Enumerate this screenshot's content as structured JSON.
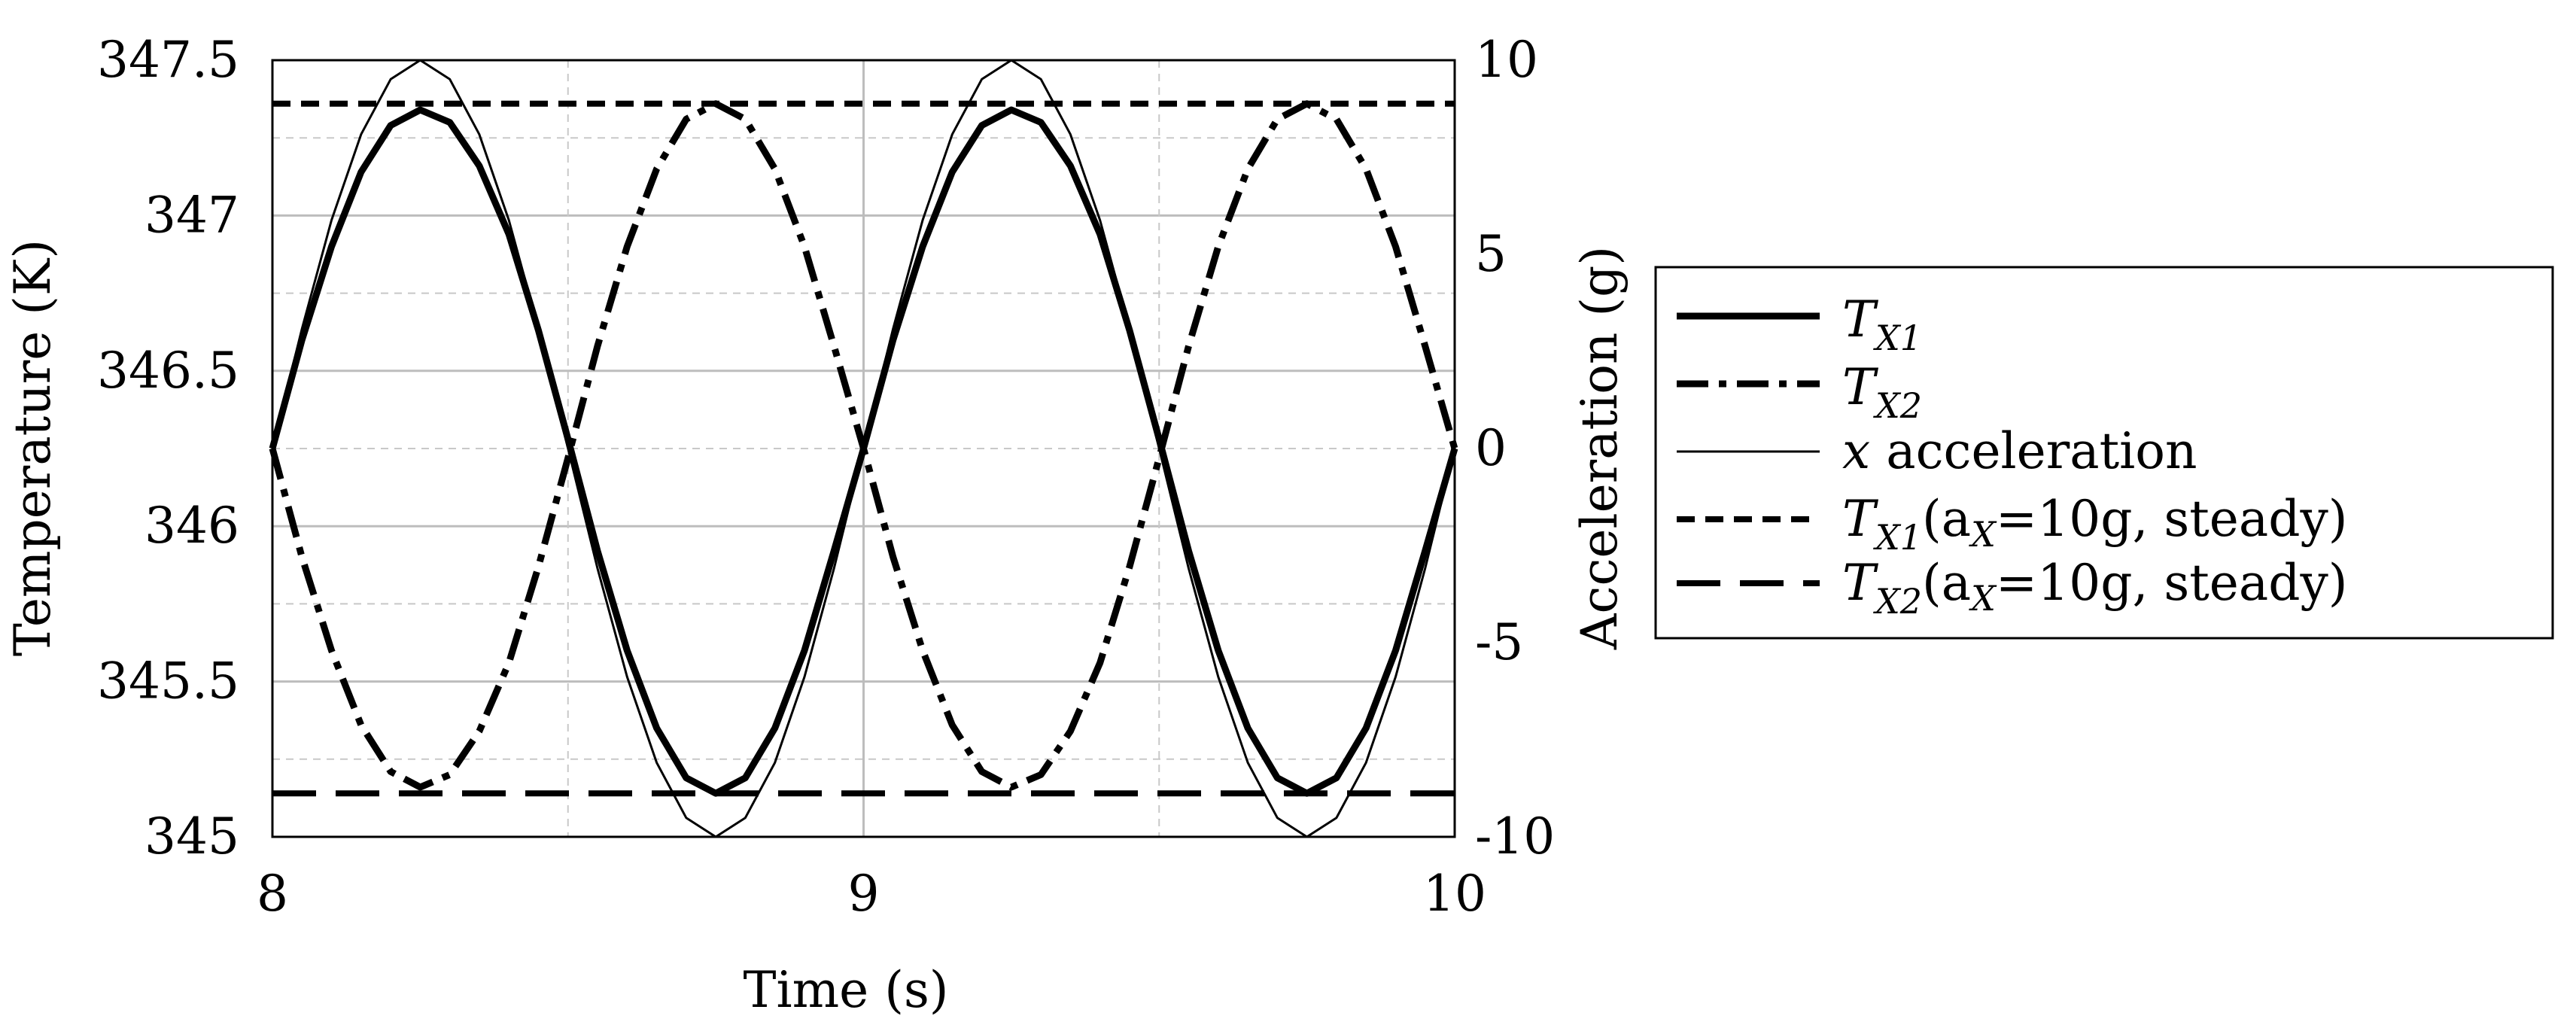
{
  "chart_data": {
    "type": "line",
    "xlabel": "Time (s)",
    "ylabel_left": "Temperature (K)",
    "ylabel_right": "Acceleration (g)",
    "xlim": [
      8,
      10
    ],
    "ylim_left": [
      345,
      347.5
    ],
    "ylim_right": [
      -10,
      10
    ],
    "x_ticks": [
      "8",
      "9",
      "10"
    ],
    "y_left_ticks": [
      "345",
      "345.5",
      "346",
      "346.5",
      "347",
      "347.5"
    ],
    "y_right_ticks": [
      "-10",
      "-5",
      "0",
      "5",
      "10"
    ],
    "grid": true,
    "legend_position": "right, outside plot",
    "legend_labels": {
      "tx1": {
        "main": "T",
        "sub": "X1",
        "tail": ""
      },
      "tx2": {
        "main": "T",
        "sub": "X2",
        "tail": ""
      },
      "acc": {
        "main": "x",
        "tail": " acceleration"
      },
      "tx1s": {
        "main": "T",
        "sub": "X1",
        "tail": "(a",
        "tail_sub": "X",
        "tail_end": "=10g, steady)"
      },
      "tx2s": {
        "main": "T",
        "sub": "X2",
        "tail": "(a",
        "tail_sub": "X",
        "tail_end": "=10g, steady)"
      }
    },
    "series": [
      {
        "name": "T_X1",
        "axis": "left",
        "style": "solid-thick",
        "x": [
          8,
          8.05,
          8.1,
          8.15,
          8.2,
          8.25,
          8.3,
          8.35,
          8.4,
          8.45,
          8.5,
          8.55,
          8.6,
          8.65,
          8.7,
          8.75,
          8.8,
          8.85,
          8.9,
          8.95,
          9,
          9.05,
          9.1,
          9.15,
          9.2,
          9.25,
          9.3,
          9.35,
          9.4,
          9.45,
          9.5,
          9.55,
          9.6,
          9.65,
          9.7,
          9.75,
          9.8,
          9.85,
          9.9,
          9.95,
          10
        ],
        "y": [
          346.25,
          346.6,
          346.9,
          347.14,
          347.29,
          347.34,
          347.3,
          347.16,
          346.94,
          346.63,
          346.28,
          345.92,
          345.6,
          345.35,
          345.19,
          345.14,
          345.19,
          345.35,
          345.6,
          345.92,
          346.25,
          346.6,
          346.9,
          347.14,
          347.29,
          347.34,
          347.3,
          347.16,
          346.94,
          346.63,
          346.28,
          345.92,
          345.6,
          345.35,
          345.19,
          345.14,
          345.19,
          345.35,
          345.6,
          345.92,
          346.25
        ]
      },
      {
        "name": "T_X2",
        "axis": "left",
        "style": "dash-dot-thick",
        "x": [
          8,
          8.05,
          8.1,
          8.15,
          8.2,
          8.25,
          8.3,
          8.35,
          8.4,
          8.45,
          8.5,
          8.55,
          8.6,
          8.65,
          8.7,
          8.75,
          8.8,
          8.85,
          8.9,
          8.95,
          9,
          9.05,
          9.1,
          9.15,
          9.2,
          9.25,
          9.3,
          9.35,
          9.4,
          9.45,
          9.5,
          9.55,
          9.6,
          9.65,
          9.7,
          9.75,
          9.8,
          9.85,
          9.9,
          9.95,
          10
        ],
        "y": [
          346.25,
          345.9,
          345.6,
          345.36,
          345.21,
          345.16,
          345.2,
          345.34,
          345.56,
          345.87,
          346.22,
          346.58,
          346.9,
          347.15,
          347.31,
          347.36,
          347.31,
          347.15,
          346.9,
          346.58,
          346.25,
          345.9,
          345.6,
          345.36,
          345.21,
          345.16,
          345.2,
          345.34,
          345.56,
          345.87,
          346.22,
          346.58,
          346.9,
          347.15,
          347.31,
          347.36,
          347.31,
          347.15,
          346.9,
          346.58,
          346.25
        ]
      },
      {
        "name": "x acceleration",
        "axis": "right",
        "style": "solid-thin",
        "x": [
          8,
          8.05,
          8.1,
          8.15,
          8.2,
          8.25,
          8.3,
          8.35,
          8.4,
          8.45,
          8.5,
          8.55,
          8.6,
          8.65,
          8.7,
          8.75,
          8.8,
          8.85,
          8.9,
          8.95,
          9,
          9.05,
          9.1,
          9.15,
          9.2,
          9.25,
          9.3,
          9.35,
          9.4,
          9.45,
          9.5,
          9.55,
          9.6,
          9.65,
          9.7,
          9.75,
          9.8,
          9.85,
          9.9,
          9.95,
          10
        ],
        "y": [
          0,
          3.09,
          5.88,
          8.09,
          9.51,
          10,
          9.51,
          8.09,
          5.88,
          3.09,
          0,
          -3.09,
          -5.88,
          -8.09,
          -9.51,
          -10,
          -9.51,
          -8.09,
          -5.88,
          -3.09,
          0,
          3.09,
          5.88,
          8.09,
          9.51,
          10,
          9.51,
          8.09,
          5.88,
          3.09,
          0,
          -3.09,
          -5.88,
          -8.09,
          -9.51,
          -10,
          -9.51,
          -8.09,
          -5.88,
          -3.09,
          0
        ]
      },
      {
        "name": "T_X1 (a_X=10g, steady)",
        "axis": "left",
        "style": "short-dash",
        "x": [
          8,
          10
        ],
        "y": [
          347.36,
          347.36
        ]
      },
      {
        "name": "T_X2 (a_X=10g, steady)",
        "axis": "left",
        "style": "long-dash",
        "x": [
          8,
          10
        ],
        "y": [
          345.14,
          345.14
        ]
      }
    ]
  }
}
